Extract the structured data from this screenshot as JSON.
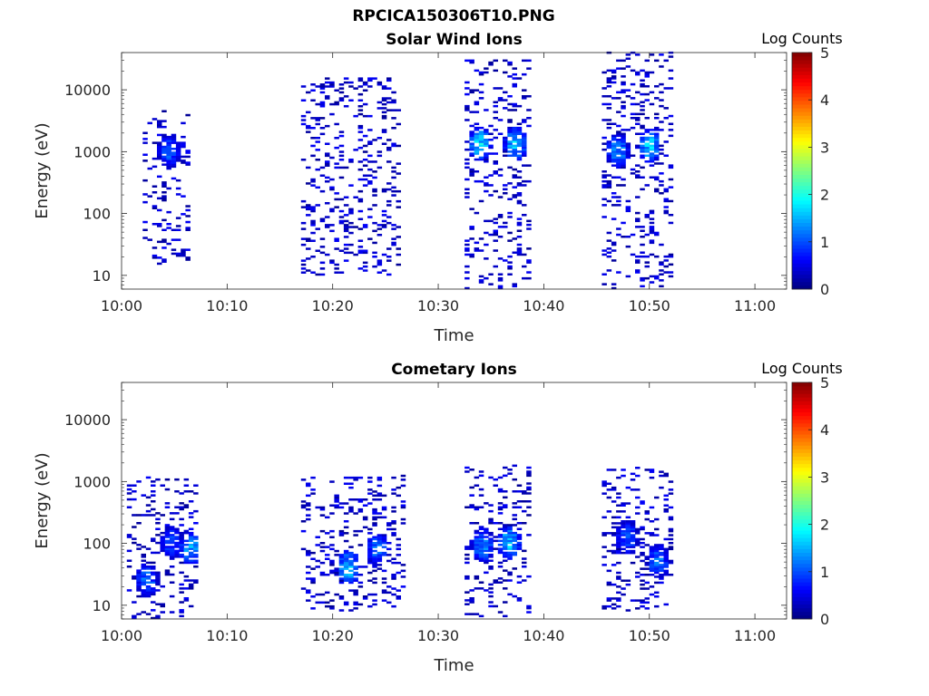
{
  "figure_title": "RPCICA150306T10.PNG",
  "colorbar": {
    "label": "Log Counts",
    "ticks": [
      0,
      1,
      2,
      3,
      4,
      5
    ],
    "range": [
      0,
      5
    ],
    "colormap": "jet"
  },
  "chart_data": [
    {
      "type": "heatmap",
      "title": "Solar Wind Ions",
      "xlabel": "Time",
      "ylabel": "Energy (eV)",
      "x_tick_labels": [
        "10:00",
        "10:10",
        "10:20",
        "10:30",
        "10:40",
        "10:50",
        "11:00"
      ],
      "x_ticks_min": [
        0,
        10,
        20,
        30,
        40,
        50,
        60
      ],
      "xlim_min": [
        0,
        63
      ],
      "y_scale": "log",
      "y_tick_labels": [
        "10",
        "100",
        "1000",
        "10000"
      ],
      "y_ticks": [
        10,
        100,
        1000,
        10000
      ],
      "ylim": [
        6,
        40000
      ],
      "clim": [
        0,
        5
      ],
      "blobs": [
        {
          "t": [
            2,
            6.5
          ],
          "e": [
            15,
            5000
          ],
          "cluster": [
            [
              4.3,
              1000,
              1.2
            ]
          ]
        },
        {
          "t": [
            17,
            26
          ],
          "e": [
            10,
            15000
          ],
          "cluster": []
        },
        {
          "t": [
            32.5,
            38.5
          ],
          "e": [
            6,
            30000
          ],
          "cluster": [
            [
              33.7,
              1300,
              1.9
            ],
            [
              37.1,
              1300,
              1.8
            ]
          ]
        },
        {
          "t": [
            45.5,
            52
          ],
          "e": [
            6,
            40000
          ],
          "cluster": [
            [
              46.8,
              1000,
              1.5
            ],
            [
              49.8,
              1200,
              1.8
            ]
          ]
        }
      ]
    },
    {
      "type": "heatmap",
      "title": "Cometary Ions",
      "xlabel": "Time",
      "ylabel": "Energy (eV)",
      "x_tick_labels": [
        "10:00",
        "10:10",
        "10:20",
        "10:30",
        "10:40",
        "10:50",
        "11:00"
      ],
      "x_ticks_min": [
        0,
        10,
        20,
        30,
        40,
        50,
        60
      ],
      "xlim_min": [
        0,
        63
      ],
      "y_scale": "log",
      "y_tick_labels": [
        "10",
        "100",
        "1000",
        "10000"
      ],
      "y_ticks": [
        10,
        100,
        1000,
        10000
      ],
      "ylim": [
        6,
        40000
      ],
      "clim": [
        0,
        5
      ],
      "blobs": [
        {
          "t": [
            0.5,
            7
          ],
          "e": [
            6,
            1200
          ],
          "cluster": [
            [
              2.2,
              25,
              1.3
            ],
            [
              6.3,
              80,
              1.6
            ],
            [
              4.5,
              100,
              1.1
            ]
          ]
        },
        {
          "t": [
            17,
            26.5
          ],
          "e": [
            8,
            1200
          ],
          "cluster": [
            [
              21.3,
              40,
              1.8
            ],
            [
              24,
              80,
              1.3
            ]
          ]
        },
        {
          "t": [
            32.5,
            38.5
          ],
          "e": [
            6,
            1800
          ],
          "cluster": [
            [
              34,
              90,
              1.5
            ],
            [
              36.5,
              100,
              1.8
            ]
          ]
        },
        {
          "t": [
            45.5,
            52
          ],
          "e": [
            8,
            1800
          ],
          "cluster": [
            [
              47.7,
              120,
              1.2
            ],
            [
              50.6,
              50,
              1.3
            ]
          ]
        }
      ]
    }
  ]
}
